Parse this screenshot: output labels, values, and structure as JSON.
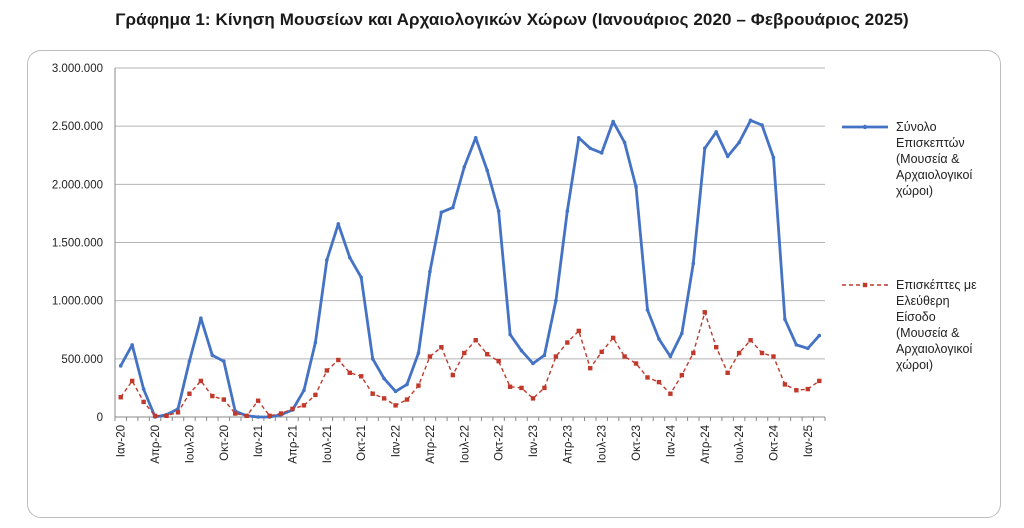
{
  "chart_data": {
    "type": "line",
    "title": "Γράφημα 1: Κίνηση Μουσείων και Αρχαιολογικών Χώρων (Ιανουάριος 2020 – Φεβρουάριος 2025)",
    "ylim": [
      0,
      3000000
    ],
    "yticks": [
      "0",
      "500.000",
      "1.000.000",
      "1.500.000",
      "2.000.000",
      "2.500.000",
      "3.000.000"
    ],
    "xtick_labels": [
      "Ιαν-20",
      "Απρ-20",
      "Ιουλ-20",
      "Οκτ-20",
      "Ιαν-21",
      "Απρ-21",
      "Ιουλ-21",
      "Οκτ-21",
      "Ιαν-22",
      "Απρ-22",
      "Ιουλ-22",
      "Οκτ-22",
      "Ιαν-23",
      "Απρ-23",
      "Ιουλ-23",
      "Οκτ-23",
      "Ιαν-24",
      "Απρ-24",
      "Ιουλ-24",
      "Οκτ-24",
      "Ιαν-25"
    ],
    "grid": true,
    "legend_position": "right",
    "series": [
      {
        "name": "Σύνολο Επισκεπτών (Μουσεία & Αρχαιολογικοί χώροι)",
        "color": "#4472c4",
        "style": "solid",
        "values": [
          440000,
          620000,
          240000,
          0,
          20000,
          70000,
          480000,
          850000,
          530000,
          480000,
          50000,
          10000,
          0,
          0,
          20000,
          60000,
          230000,
          640000,
          1350000,
          1660000,
          1370000,
          1200000,
          500000,
          330000,
          220000,
          280000,
          550000,
          1250000,
          1760000,
          1800000,
          2150000,
          2400000,
          2120000,
          1770000,
          710000,
          570000,
          460000,
          530000,
          1000000,
          1770000,
          2400000,
          2310000,
          2270000,
          2540000,
          2360000,
          1980000,
          920000,
          670000,
          520000,
          720000,
          1320000,
          2310000,
          2450000,
          2240000,
          2360000,
          2550000,
          2510000,
          2230000,
          840000,
          620000,
          590000,
          700000
        ]
      },
      {
        "name": "Επισκέπτες με Ελεύθερη Είσοδο (Μουσεία & Αρχαιολογικοί χώροι)",
        "color": "#c0392b",
        "style": "dashed",
        "values": [
          170000,
          310000,
          130000,
          10000,
          10000,
          40000,
          200000,
          310000,
          180000,
          150000,
          30000,
          10000,
          140000,
          10000,
          30000,
          70000,
          100000,
          190000,
          400000,
          490000,
          380000,
          350000,
          200000,
          160000,
          100000,
          150000,
          270000,
          520000,
          600000,
          360000,
          550000,
          660000,
          540000,
          480000,
          260000,
          250000,
          160000,
          250000,
          520000,
          640000,
          740000,
          420000,
          560000,
          680000,
          520000,
          460000,
          340000,
          300000,
          200000,
          360000,
          550000,
          900000,
          600000,
          380000,
          550000,
          660000,
          550000,
          520000,
          280000,
          230000,
          240000,
          310000
        ]
      }
    ],
    "legend": {
      "s1": [
        "Σύνολο",
        "Επισκεπτών",
        "(Μουσεία &",
        "Αρχαιολογικοί",
        "χώροι)"
      ],
      "s2": [
        "Επισκέπτες με",
        "Ελεύθερη",
        "Είσοδο",
        "(Μουσεία &",
        "Αρχαιολογικοί",
        "χώροι)"
      ]
    }
  }
}
